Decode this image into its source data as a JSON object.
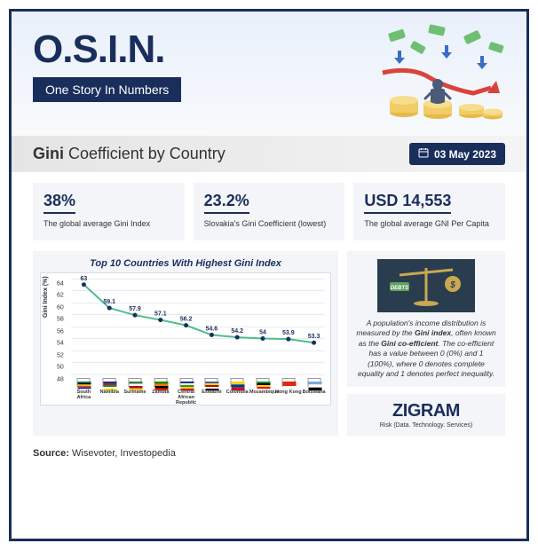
{
  "header": {
    "logo": "O.S.I.N.",
    "subtitle": "One Story In Numbers"
  },
  "title": {
    "bold": "Gini",
    "rest": " Coefficient by Country",
    "date": "03 May 2023"
  },
  "stats": [
    {
      "value": "38%",
      "label": "The global average Gini Index"
    },
    {
      "value": "23.2%",
      "label": "Slovakia's Gini Coefficient (lowest)"
    },
    {
      "value": "USD 14,553",
      "label": "The global average GNI Per Capita"
    }
  ],
  "chart": {
    "title": "Top 10 Countries With Highest Gini Index",
    "ylabel": "Gini Index (%)",
    "ylim": [
      48,
      64
    ],
    "ytick_step": 2,
    "yticks": [
      48,
      50,
      52,
      54,
      56,
      58,
      60,
      62,
      64
    ],
    "categories": [
      "South Africa",
      "Namibia",
      "Suriname",
      "Zambia",
      "Central African Republic",
      "Eswatini",
      "Colombia",
      "Mozambique",
      "Hong Kong",
      "Botswana"
    ],
    "values": [
      63,
      59.1,
      57.9,
      57.1,
      56.2,
      54.6,
      54.2,
      54,
      53.9,
      53.3
    ],
    "flag_colors": [
      [
        "#007a4d",
        "#000000",
        "#ffb81c",
        "#de3831",
        "#002395",
        "#ffffff"
      ],
      [
        "#003580",
        "#d21034",
        "#009543",
        "#ffffff",
        "#ffce00"
      ],
      [
        "#377e3f",
        "#ffffff",
        "#b40a2d",
        "#ecc81d"
      ],
      [
        "#198a00",
        "#ef7d00",
        "#000000",
        "#de2010"
      ],
      [
        "#003082",
        "#ffffff",
        "#289728",
        "#ffce00",
        "#d21034"
      ],
      [
        "#3e5eb9",
        "#ffd900",
        "#b10c0c",
        "#ffffff",
        "#000000"
      ],
      [
        "#fcd116",
        "#003893",
        "#ce1126"
      ],
      [
        "#009639",
        "#000000",
        "#ffd100",
        "#e4002b",
        "#ffffff"
      ],
      [
        "#de2910",
        "#ffffff"
      ],
      [
        "#75aadb",
        "#ffffff",
        "#000000"
      ]
    ],
    "line_color": "#4bbd8f",
    "dot_color": "#1a2e5c",
    "background_color": "#ffffff",
    "grid_color": "#e8ebf0"
  },
  "explain": {
    "text_parts": [
      "A population's income distribution is measured by the ",
      "Gini index",
      ", often known as the ",
      "Gini co-efficient",
      ". The co-efficient has a value between 0 (0%) and 1 (100%), where 0 denotes complete equality and 1 denotes perfect inequality."
    ]
  },
  "brand": {
    "name": "ZIGRAM",
    "tag": "Risk (Data. Technology. Services)"
  },
  "source": {
    "label": "Source:",
    "text": " Wisevoter, Investopedia"
  }
}
